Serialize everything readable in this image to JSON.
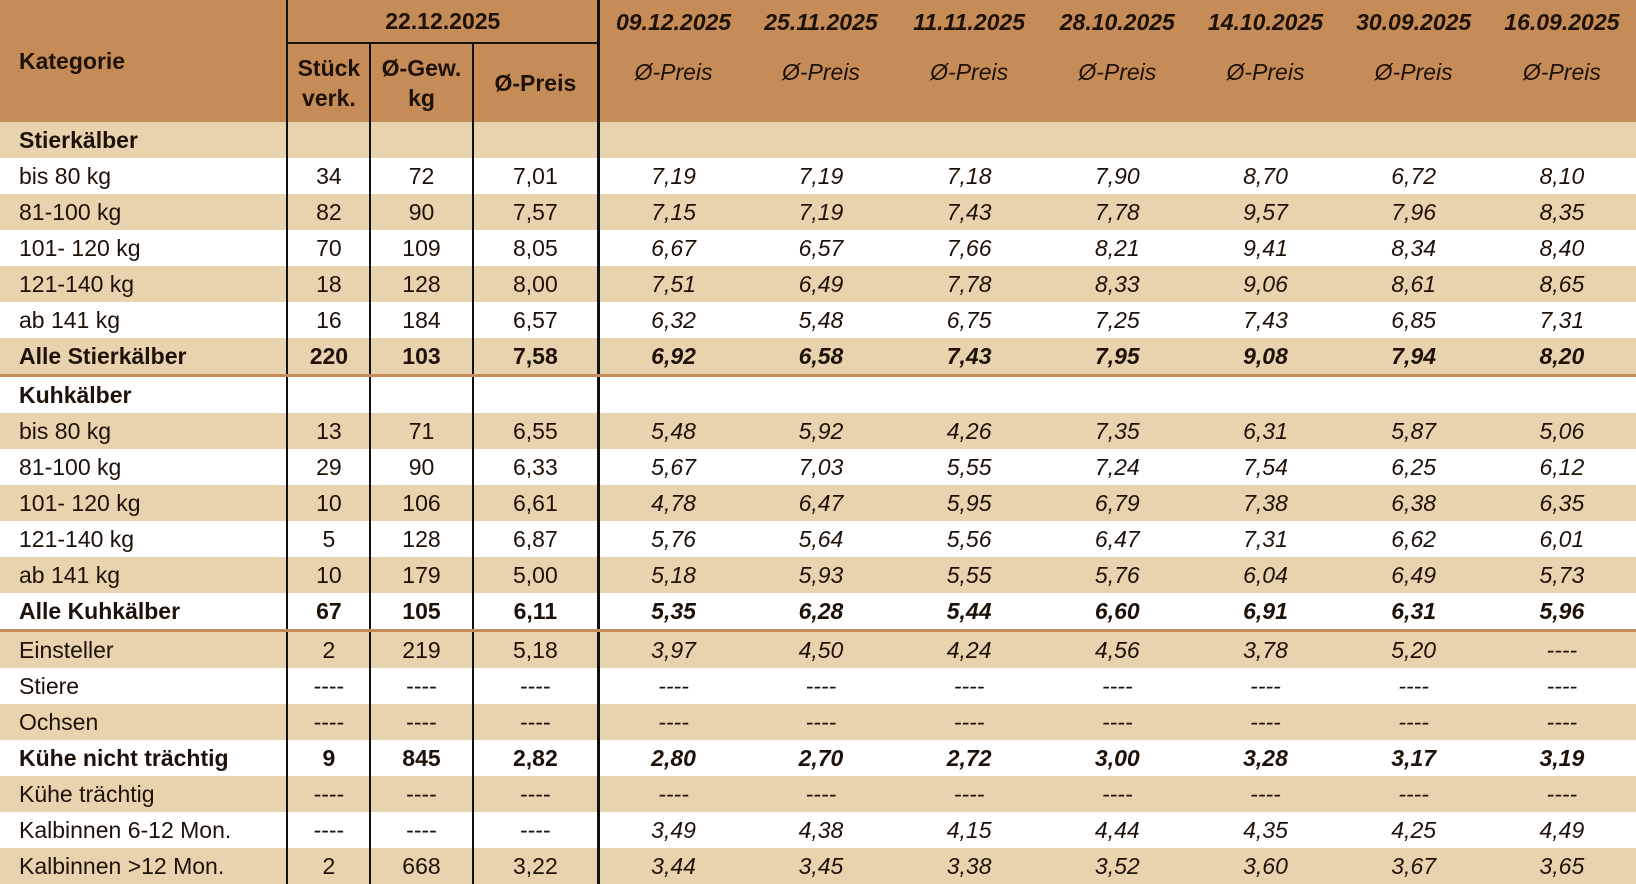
{
  "table": {
    "header": {
      "category": "Kategorie",
      "current_date": "22.12.2025",
      "current_cols": [
        "Stück verk.",
        "Ø-Gew. kg",
        "Ø-Preis"
      ],
      "past_dates": [
        "09.12.2025",
        "25.11.2025",
        "11.11.2025",
        "28.10.2025",
        "14.10.2025",
        "30.09.2025",
        "16.09.2025"
      ],
      "past_col": "Ø-Preis"
    },
    "rows": [
      {
        "label": "Stierkälber"
      },
      {
        "label": "bis 80 kg",
        "values": [
          "34",
          "72",
          "7,01",
          "7,19",
          "7,19",
          "7,18",
          "7,90",
          "8,70",
          "6,72",
          "8,10"
        ]
      },
      {
        "label": "81-100 kg",
        "values": [
          "82",
          "90",
          "7,57",
          "7,15",
          "7,19",
          "7,43",
          "7,78",
          "9,57",
          "7,96",
          "8,35"
        ]
      },
      {
        "label": "101- 120 kg",
        "values": [
          "70",
          "109",
          "8,05",
          "6,67",
          "6,57",
          "7,66",
          "8,21",
          "9,41",
          "8,34",
          "8,40"
        ]
      },
      {
        "label": "121-140 kg",
        "values": [
          "18",
          "128",
          "8,00",
          "7,51",
          "6,49",
          "7,78",
          "8,33",
          "9,06",
          "8,61",
          "8,65"
        ]
      },
      {
        "label": "ab 141 kg",
        "values": [
          "16",
          "184",
          "6,57",
          "6,32",
          "5,48",
          "6,75",
          "7,25",
          "7,43",
          "6,85",
          "7,31"
        ]
      },
      {
        "label": "Alle Stierkälber",
        "values": [
          "220",
          "103",
          "7,58",
          "6,92",
          "6,58",
          "7,43",
          "7,95",
          "9,08",
          "7,94",
          "8,20"
        ]
      },
      {
        "label": "Kuhkälber"
      },
      {
        "label": "bis 80 kg",
        "values": [
          "13",
          "71",
          "6,55",
          "5,48",
          "5,92",
          "4,26",
          "7,35",
          "6,31",
          "5,87",
          "5,06"
        ]
      },
      {
        "label": "81-100 kg",
        "values": [
          "29",
          "90",
          "6,33",
          "5,67",
          "7,03",
          "5,55",
          "7,24",
          "7,54",
          "6,25",
          "6,12"
        ]
      },
      {
        "label": "101- 120 kg",
        "values": [
          "10",
          "106",
          "6,61",
          "4,78",
          "6,47",
          "5,95",
          "6,79",
          "7,38",
          "6,38",
          "6,35"
        ]
      },
      {
        "label": "121-140 kg",
        "values": [
          "5",
          "128",
          "6,87",
          "5,76",
          "5,64",
          "5,56",
          "6,47",
          "7,31",
          "6,62",
          "6,01"
        ]
      },
      {
        "label": "ab 141 kg",
        "values": [
          "10",
          "179",
          "5,00",
          "5,18",
          "5,93",
          "5,55",
          "5,76",
          "6,04",
          "6,49",
          "5,73"
        ]
      },
      {
        "label": "Alle Kuhkälber",
        "values": [
          "67",
          "105",
          "6,11",
          "5,35",
          "6,28",
          "5,44",
          "6,60",
          "6,91",
          "6,31",
          "5,96"
        ]
      },
      {
        "label": "Einsteller",
        "values": [
          "2",
          "219",
          "5,18",
          "3,97",
          "4,50",
          "4,24",
          "4,56",
          "3,78",
          "5,20",
          "----"
        ]
      },
      {
        "label": "Stiere",
        "values": [
          "----",
          "----",
          "----",
          "----",
          "----",
          "----",
          "----",
          "----",
          "----",
          "----"
        ]
      },
      {
        "label": "Ochsen",
        "values": [
          "----",
          "----",
          "----",
          "----",
          "----",
          "----",
          "----",
          "----",
          "----",
          "----"
        ]
      },
      {
        "label": "Kühe nicht trächtig",
        "values": [
          "9",
          "845",
          "2,82",
          "2,80",
          "2,70",
          "2,72",
          "3,00",
          "3,28",
          "3,17",
          "3,19"
        ]
      },
      {
        "label": "Kühe trächtig",
        "values": [
          "----",
          "----",
          "----",
          "----",
          "----",
          "----",
          "----",
          "----",
          "----",
          "----"
        ]
      },
      {
        "label": "Kalbinnen 6-12 Mon.",
        "values": [
          "----",
          "----",
          "----",
          "3,49",
          "4,38",
          "4,15",
          "4,44",
          "4,35",
          "4,25",
          "4,49"
        ]
      },
      {
        "label": "Kalbinnen >12 Mon.",
        "values": [
          "2",
          "668",
          "3,22",
          "3,44",
          "3,45",
          "3,38",
          "3,52",
          "3,60",
          "3,67",
          "3,65"
        ]
      }
    ]
  }
}
